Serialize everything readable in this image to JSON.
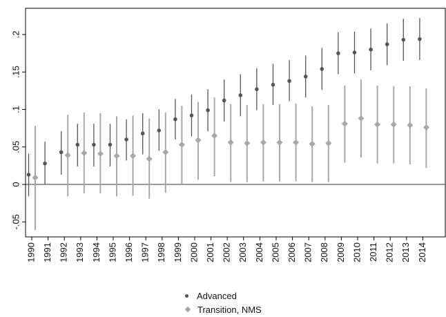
{
  "chart_data": {
    "type": "scatter",
    "title": "",
    "xlabel": "",
    "ylabel": "",
    "ylim": [
      -0.07,
      0.235
    ],
    "yticks": [
      -0.05,
      0,
      0.05,
      0.1,
      0.15,
      0.2
    ],
    "ytick_labels": [
      "-.05",
      "0",
      ".05",
      ".1",
      ".15",
      ".2"
    ],
    "categories": [
      "1990",
      "1991",
      "1992",
      "1993",
      "1994",
      "1995",
      "1996",
      "1997",
      "1998",
      "1999",
      "2000",
      "2001",
      "2002",
      "2003",
      "2004",
      "2005",
      "2006",
      "2007",
      "2008",
      "2009",
      "2010",
      "2011",
      "2012",
      "2013",
      "2014"
    ],
    "reference_line": 0,
    "legend_position": "bottom",
    "series": [
      {
        "name": "Advanced",
        "color": "#555555",
        "marker": "circle",
        "values": [
          0.013,
          0.028,
          0.043,
          0.053,
          0.053,
          0.053,
          0.06,
          0.068,
          0.072,
          0.087,
          0.092,
          0.099,
          0.112,
          0.119,
          0.127,
          0.133,
          0.138,
          0.144,
          0.154,
          0.175,
          0.176,
          0.18,
          0.187,
          0.193,
          0.194
        ],
        "lower": [
          -0.016,
          0.0,
          0.013,
          0.024,
          0.024,
          0.024,
          0.032,
          0.04,
          0.045,
          0.06,
          0.064,
          0.071,
          0.084,
          0.091,
          0.099,
          0.106,
          0.111,
          0.116,
          0.126,
          0.147,
          0.148,
          0.152,
          0.159,
          0.165,
          0.166
        ],
        "upper": [
          0.041,
          0.057,
          0.071,
          0.081,
          0.081,
          0.081,
          0.087,
          0.095,
          0.1,
          0.114,
          0.12,
          0.127,
          0.14,
          0.147,
          0.155,
          0.161,
          0.166,
          0.172,
          0.182,
          0.203,
          0.204,
          0.208,
          0.215,
          0.221,
          0.222
        ]
      },
      {
        "name": "Transition, NMS",
        "color": "#a8a8a8",
        "marker": "diamond",
        "values": [
          0.009,
          null,
          0.039,
          0.042,
          0.041,
          0.038,
          0.038,
          0.034,
          0.043,
          0.053,
          0.059,
          0.065,
          0.056,
          0.055,
          0.056,
          0.056,
          0.056,
          0.054,
          0.055,
          0.081,
          0.088,
          0.08,
          0.08,
          0.079,
          0.076
        ],
        "lower": [
          -0.061,
          null,
          -0.016,
          -0.012,
          -0.012,
          -0.016,
          -0.015,
          -0.019,
          -0.011,
          0.0,
          0.006,
          0.011,
          0.003,
          0.003,
          0.004,
          0.004,
          0.004,
          0.003,
          0.003,
          0.029,
          0.036,
          0.028,
          0.028,
          0.027,
          0.022
        ],
        "upper": [
          0.078,
          null,
          0.093,
          0.096,
          0.095,
          0.091,
          0.092,
          0.088,
          0.096,
          0.105,
          0.11,
          0.116,
          0.107,
          0.106,
          0.107,
          0.107,
          0.108,
          0.104,
          0.106,
          0.132,
          0.14,
          0.132,
          0.131,
          0.131,
          0.128
        ]
      }
    ]
  }
}
